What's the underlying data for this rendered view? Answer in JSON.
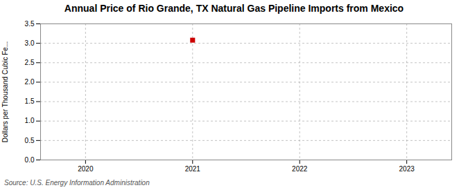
{
  "chart_data": {
    "type": "scatter",
    "title": "Annual Price of Rio Grande, TX Natural Gas Pipeline Imports from Mexico",
    "ylabel": "Dollars per Thousand Cubic Fe...",
    "annotation": "Source: U.S. Energy Information Administration",
    "x": [
      2021
    ],
    "values": [
      3.08
    ],
    "color": "#cc0000",
    "marker": "square",
    "xlim": [
      2019.58,
      2023.42
    ],
    "xticks": [
      2020,
      2021,
      2022,
      2023
    ],
    "ylim": [
      0.0,
      3.5
    ],
    "yticks": [
      {
        "value": 0.0,
        "label": "0.0"
      },
      0.5,
      {
        "value": 1.0,
        "label": "1.0"
      },
      1.5,
      {
        "value": 2.0,
        "label": "2.0"
      },
      2.5,
      {
        "value": 3.0,
        "label": "3.0"
      },
      3.5
    ],
    "grid": true
  }
}
